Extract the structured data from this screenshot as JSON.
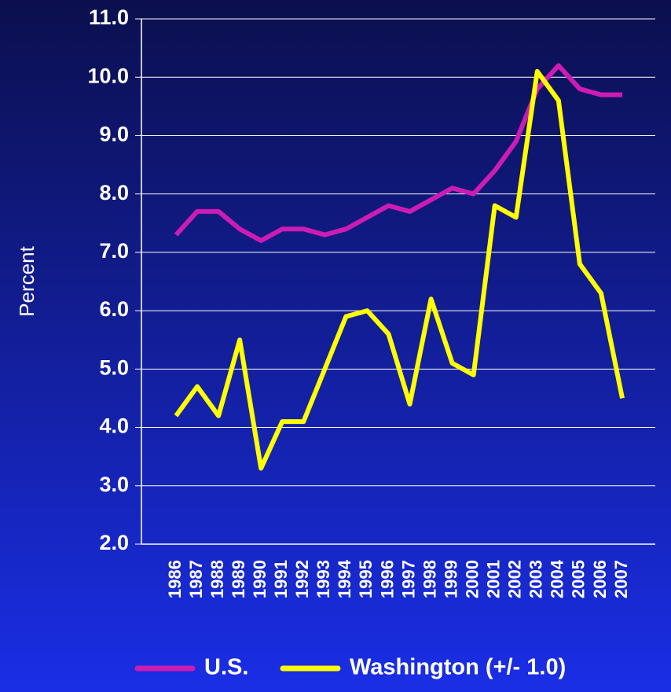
{
  "chart_data": {
    "type": "line",
    "y_label": "Percent",
    "x": [
      "1986",
      "1987",
      "1988",
      "1989",
      "1990",
      "1991",
      "1992",
      "1993",
      "1994",
      "1995",
      "1996",
      "1997",
      "1998",
      "1999",
      "2000",
      "2001",
      "2002",
      "2003",
      "2004",
      "2005",
      "2006",
      "2007"
    ],
    "series": [
      {
        "name": "U.S.",
        "color": "#cc1cb4",
        "values": [
          7.3,
          7.7,
          7.7,
          7.4,
          7.2,
          7.4,
          7.4,
          7.3,
          7.4,
          7.6,
          7.8,
          7.7,
          7.9,
          8.1,
          8.0,
          8.4,
          8.9,
          9.8,
          10.2,
          9.8,
          9.7,
          9.7
        ]
      },
      {
        "name": "Washington (+/- 1.0)",
        "color": "#ffff00",
        "values": [
          4.2,
          4.7,
          4.2,
          5.5,
          3.3,
          4.1,
          4.1,
          5.0,
          5.9,
          6.0,
          5.6,
          4.4,
          6.2,
          5.1,
          4.9,
          7.8,
          7.6,
          10.1,
          9.6,
          6.8,
          6.3,
          4.5
        ]
      }
    ],
    "ylim": [
      2,
      11
    ],
    "yticks": [
      {
        "value": 2,
        "label": "2.0"
      },
      {
        "value": 3,
        "label": "3.0"
      },
      {
        "value": 4,
        "label": "4.0"
      },
      {
        "value": 5,
        "label": "5.0"
      },
      {
        "value": 6,
        "label": "6.0"
      },
      {
        "value": 7,
        "label": "7.0"
      },
      {
        "value": 8,
        "label": "8.0"
      },
      {
        "value": 9,
        "label": "9.0"
      },
      {
        "value": 10,
        "label": "10.0"
      },
      {
        "value": 11,
        "label": "11.0"
      }
    ],
    "grid": true,
    "legend": "bottom"
  }
}
